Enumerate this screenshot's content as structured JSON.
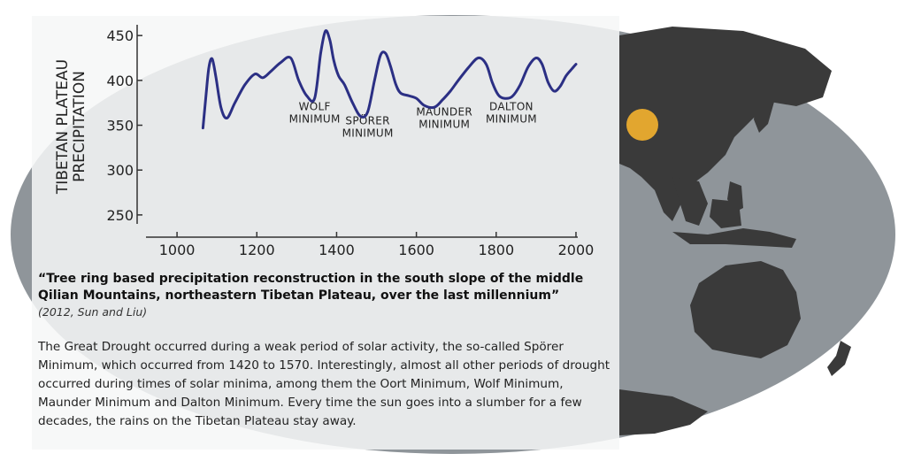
{
  "colors": {
    "ocean": "#8f959a",
    "land": "#3a3a3a",
    "panel": "#f3f4f4",
    "series": "#2b2f84",
    "marker": "#e2a62f"
  },
  "chart_data": {
    "type": "line",
    "ylabel_lines": [
      "TIBETAN PLATEAU",
      "PRECIPITATION"
    ],
    "xlabel": "",
    "xlim": [
      900,
      2020
    ],
    "ylim": [
      240,
      462
    ],
    "xticks": [
      1000,
      1200,
      1400,
      1600,
      1800,
      2000
    ],
    "yticks": [
      250,
      300,
      350,
      400,
      450
    ],
    "grid": false,
    "series": [
      {
        "x": [
          1065,
          1073,
          1080,
          1088,
          1097,
          1110,
          1125,
          1145,
          1170,
          1195,
          1215,
          1235,
          1260,
          1285,
          1305,
          1325,
          1345,
          1360,
          1372,
          1383,
          1393,
          1405,
          1420,
          1440,
          1460,
          1478,
          1495,
          1510,
          1523,
          1535,
          1548,
          1560,
          1580,
          1600,
          1620,
          1645,
          1665,
          1685,
          1705,
          1730,
          1755,
          1775,
          1790,
          1805,
          1820,
          1840,
          1860,
          1880,
          1900,
          1915,
          1930,
          1945,
          1960,
          1975,
          1990,
          2000
        ],
        "values": [
          347,
          385,
          415,
          424,
          405,
          370,
          358,
          375,
          395,
          407,
          403,
          410,
          420,
          425,
          400,
          383,
          380,
          430,
          455,
          445,
          422,
          405,
          395,
          375,
          360,
          365,
          400,
          428,
          430,
          416,
          396,
          386,
          383,
          380,
          372,
          370,
          378,
          388,
          400,
          414,
          425,
          418,
          398,
          384,
          380,
          382,
          395,
          415,
          425,
          418,
          398,
          388,
          393,
          405,
          413,
          418
        ]
      }
    ],
    "annotations": [
      {
        "lines": [
          "WOLF",
          "MINIMUM"
        ],
        "x": 1345,
        "y": 367
      },
      {
        "lines": [
          "SPÖRER",
          "MINIMUM"
        ],
        "x": 1478,
        "y": 351
      },
      {
        "lines": [
          "MAUNDER",
          "MINIMUM"
        ],
        "x": 1670,
        "y": 361
      },
      {
        "lines": [
          "DALTON",
          "MINIMUM"
        ],
        "x": 1838,
        "y": 367
      }
    ]
  },
  "citation": {
    "title": "“Tree ring based precipitation reconstruction in the south slope of the middle Qilian Mountains, northeastern Tibetan Plateau, over the last millennium”",
    "source": "(2012, Sun and Liu)"
  },
  "body": "The Great Drought occurred during a weak period of solar activity, the so-called Spörer Minimum, which occurred from 1420 to 1570. Interestingly, almost all other periods of drought occurred during times of solar minima, among them the Oort Minimum, Wolf Minimum, Maunder Minimum and Dalton Minimum. Every time the sun goes into a slumber for a few decades, the rains on the Tibetan Plateau stay away."
}
